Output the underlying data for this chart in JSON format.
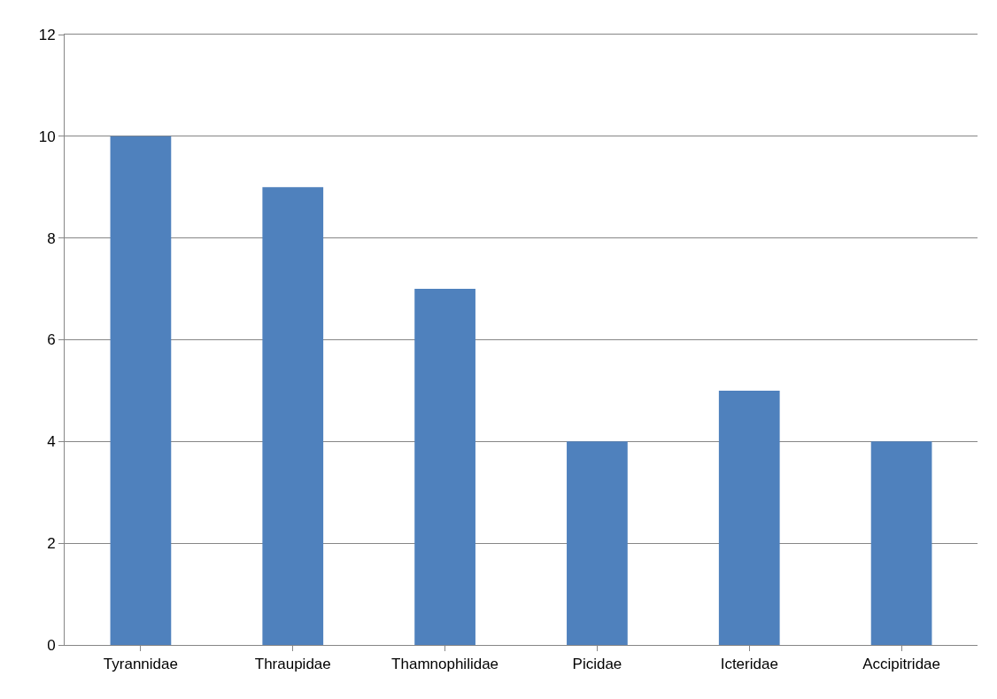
{
  "chart_data": {
    "type": "bar",
    "categories": [
      "Tyrannidae",
      "Thraupidae",
      "Thamnophilidae",
      "Picidae",
      "Icteridae",
      "Accipitridae"
    ],
    "values": [
      10,
      9,
      7,
      4,
      5,
      4
    ],
    "color": "#4f81bd",
    "ylim": [
      0,
      12
    ],
    "yticks": [
      0,
      2,
      4,
      6,
      8,
      10,
      12
    ],
    "grid": "y"
  }
}
